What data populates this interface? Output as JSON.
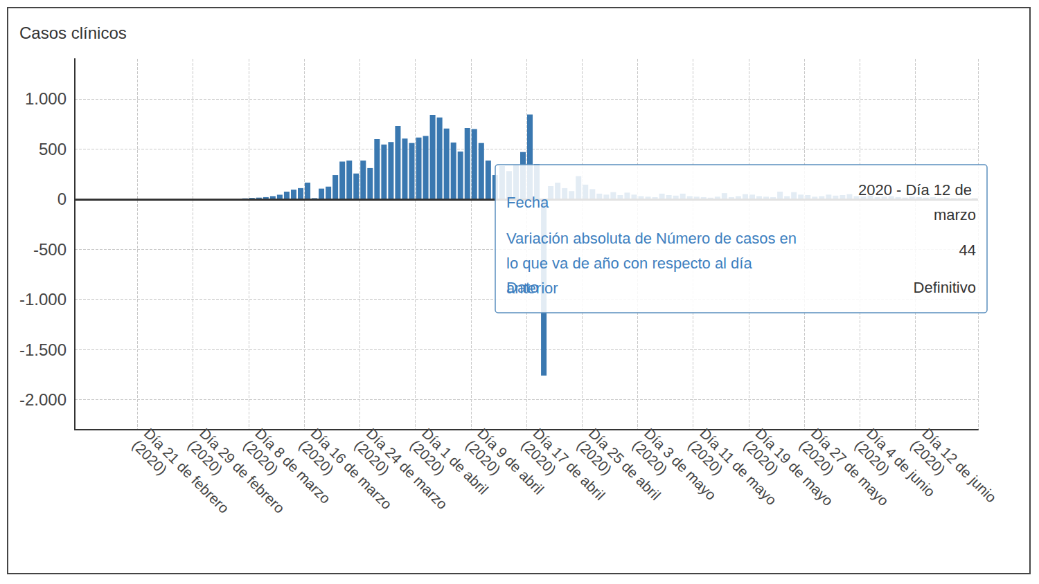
{
  "chart_data": {
    "type": "bar",
    "title": "Casos clínicos",
    "color": "#3a78b0",
    "grid": true,
    "categories": [
      null,
      null,
      null,
      null,
      null,
      null,
      null,
      null,
      null,
      "Día 21 de febrero (2020)",
      null,
      null,
      null,
      null,
      null,
      null,
      null,
      "Día 29 de febrero (2020)",
      null,
      null,
      null,
      null,
      null,
      null,
      null,
      "Día 8 de marzo (2020)",
      null,
      null,
      null,
      null,
      null,
      null,
      null,
      "Día 16 de marzo (2020)",
      null,
      null,
      null,
      null,
      null,
      null,
      null,
      "Día 24 de marzo (2020)",
      null,
      null,
      null,
      null,
      null,
      null,
      null,
      "Día 1 de abril (2020)",
      null,
      null,
      null,
      null,
      null,
      null,
      null,
      "Día 9 de abril (2020)",
      null,
      null,
      null,
      null,
      null,
      null,
      null,
      "Día 17 de abril (2020)",
      null,
      null,
      null,
      null,
      null,
      null,
      null,
      "Día 25 de abril (2020)",
      null,
      null,
      null,
      null,
      null,
      null,
      null,
      "Día 3 de mayo (2020)",
      null,
      null,
      null,
      null,
      null,
      null,
      null,
      "Día 11 de mayo (2020)",
      null,
      null,
      null,
      null,
      null,
      null,
      null,
      "Día 19 de mayo (2020)",
      null,
      null,
      null,
      null,
      null,
      null,
      null,
      "Día 27 de mayo (2020)",
      null,
      null,
      null,
      null,
      null,
      null,
      null,
      "Día 4 de junio (2020)",
      null,
      null,
      null,
      null,
      null,
      null,
      null,
      "Día 12 de junio (2020)",
      null,
      null,
      null,
      null,
      null,
      null,
      null,
      null
    ],
    "values": [
      0,
      0,
      0,
      0,
      0,
      0,
      0,
      0,
      0,
      3,
      0,
      0,
      0,
      0,
      0,
      0,
      0,
      0,
      0,
      2,
      4,
      2,
      3,
      5,
      8,
      12,
      15,
      20,
      30,
      44,
      75,
      95,
      110,
      165,
      10,
      105,
      125,
      240,
      375,
      385,
      255,
      385,
      310,
      600,
      545,
      570,
      730,
      605,
      560,
      615,
      630,
      840,
      815,
      705,
      565,
      475,
      710,
      700,
      560,
      385,
      240,
      330,
      280,
      340,
      470,
      845,
      350,
      -1760,
      130,
      165,
      110,
      80,
      230,
      145,
      100,
      55,
      45,
      70,
      40,
      65,
      45,
      30,
      25,
      20,
      55,
      40,
      35,
      55,
      30,
      25,
      20,
      15,
      25,
      60,
      20,
      30,
      50,
      45,
      30,
      25,
      20,
      75,
      30,
      70,
      45,
      40,
      25,
      30,
      45,
      35,
      40,
      50,
      30,
      25,
      35,
      20,
      25,
      30,
      20,
      15,
      25,
      20,
      15,
      20,
      10,
      15,
      10,
      10,
      5,
      10
    ],
    "ylim": [
      -2300,
      1400
    ],
    "yticks": [
      {
        "value": -2000,
        "label": "-2.000"
      },
      {
        "value": -1500,
        "label": "-1.500"
      },
      {
        "value": -1000,
        "label": "-1.000"
      },
      -500,
      0,
      500,
      {
        "value": 1000,
        "label": "1.000"
      }
    ],
    "annotation": {
      "fields": [
        {
          "label": "Fecha",
          "value": "2020 - Día 12 de marzo"
        },
        {
          "label": "Variación absoluta de Número de casos en lo que va de año con respecto al día anterior",
          "value": 44
        },
        {
          "label": "Dato",
          "value": "Definitivo"
        }
      ]
    }
  }
}
